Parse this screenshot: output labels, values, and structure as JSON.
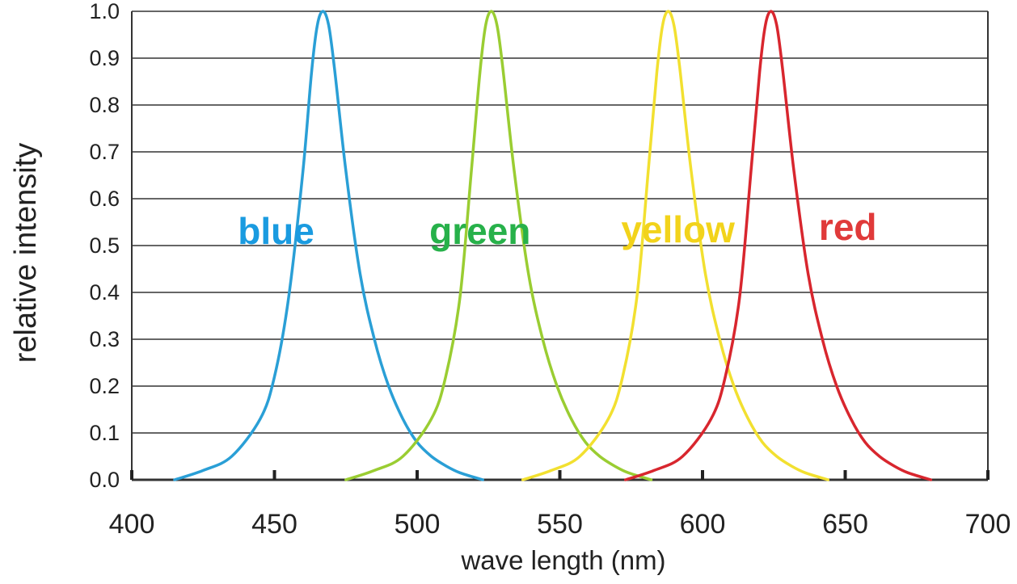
{
  "chart_data": {
    "type": "line",
    "title": "",
    "xlabel": "wave length (nm)",
    "ylabel": "relative intensity",
    "xlim": [
      400,
      700
    ],
    "ylim": [
      0,
      1.0
    ],
    "x_ticks": [
      "400",
      "450",
      "500",
      "550",
      "600",
      "650",
      "700"
    ],
    "y_ticks": [
      "0.0",
      "0.1",
      "0.2",
      "0.3",
      "0.4",
      "0.5",
      "0.6",
      "0.7",
      "0.8",
      "0.9",
      "1.0"
    ],
    "grid": "horizontal",
    "series": [
      {
        "name": "blue",
        "color": "#2a9fd6",
        "label_color": "#1a9be0",
        "x": [
          415,
          425,
          435,
          445,
          450,
          455,
          460,
          463,
          465,
          467,
          469,
          471,
          475,
          480,
          485,
          490,
          495,
          500,
          505,
          510,
          515,
          523
        ],
        "y": [
          0.0,
          0.02,
          0.05,
          0.13,
          0.22,
          0.39,
          0.66,
          0.87,
          0.97,
          1.0,
          0.97,
          0.88,
          0.66,
          0.44,
          0.3,
          0.2,
          0.13,
          0.08,
          0.05,
          0.03,
          0.015,
          0.0
        ]
      },
      {
        "name": "green",
        "color": "#9acd32",
        "label_color": "#27b14a",
        "x": [
          475,
          485,
          495,
          505,
          510,
          515,
          519,
          522,
          524,
          526,
          528,
          530,
          534,
          539,
          544,
          549,
          554,
          559,
          564,
          569,
          574,
          582
        ],
        "y": [
          0.0,
          0.02,
          0.05,
          0.13,
          0.22,
          0.39,
          0.66,
          0.87,
          0.97,
          1.0,
          0.97,
          0.88,
          0.66,
          0.44,
          0.3,
          0.2,
          0.13,
          0.08,
          0.05,
          0.03,
          0.015,
          0.0
        ]
      },
      {
        "name": "yellow",
        "color": "#f2e030",
        "label_color": "#f2d31b",
        "x": [
          537,
          547,
          557,
          567,
          572,
          577,
          581,
          584,
          586,
          588,
          590,
          592,
          596,
          601,
          606,
          611,
          616,
          621,
          626,
          631,
          636,
          644
        ],
        "y": [
          0.0,
          0.02,
          0.05,
          0.13,
          0.22,
          0.39,
          0.66,
          0.87,
          0.97,
          1.0,
          0.97,
          0.88,
          0.66,
          0.44,
          0.3,
          0.2,
          0.13,
          0.08,
          0.05,
          0.03,
          0.015,
          0.0
        ]
      },
      {
        "name": "red",
        "color": "#d8262e",
        "label_color": "#e03a3a",
        "x": [
          573,
          583,
          593,
          603,
          608,
          613,
          617,
          620,
          622,
          624,
          626,
          628,
          632,
          637,
          642,
          647,
          652,
          657,
          662,
          667,
          672,
          680
        ],
        "y": [
          0.0,
          0.02,
          0.05,
          0.13,
          0.22,
          0.39,
          0.66,
          0.87,
          0.97,
          1.0,
          0.97,
          0.88,
          0.66,
          0.44,
          0.3,
          0.2,
          0.13,
          0.08,
          0.05,
          0.03,
          0.015,
          0.0
        ]
      }
    ]
  }
}
